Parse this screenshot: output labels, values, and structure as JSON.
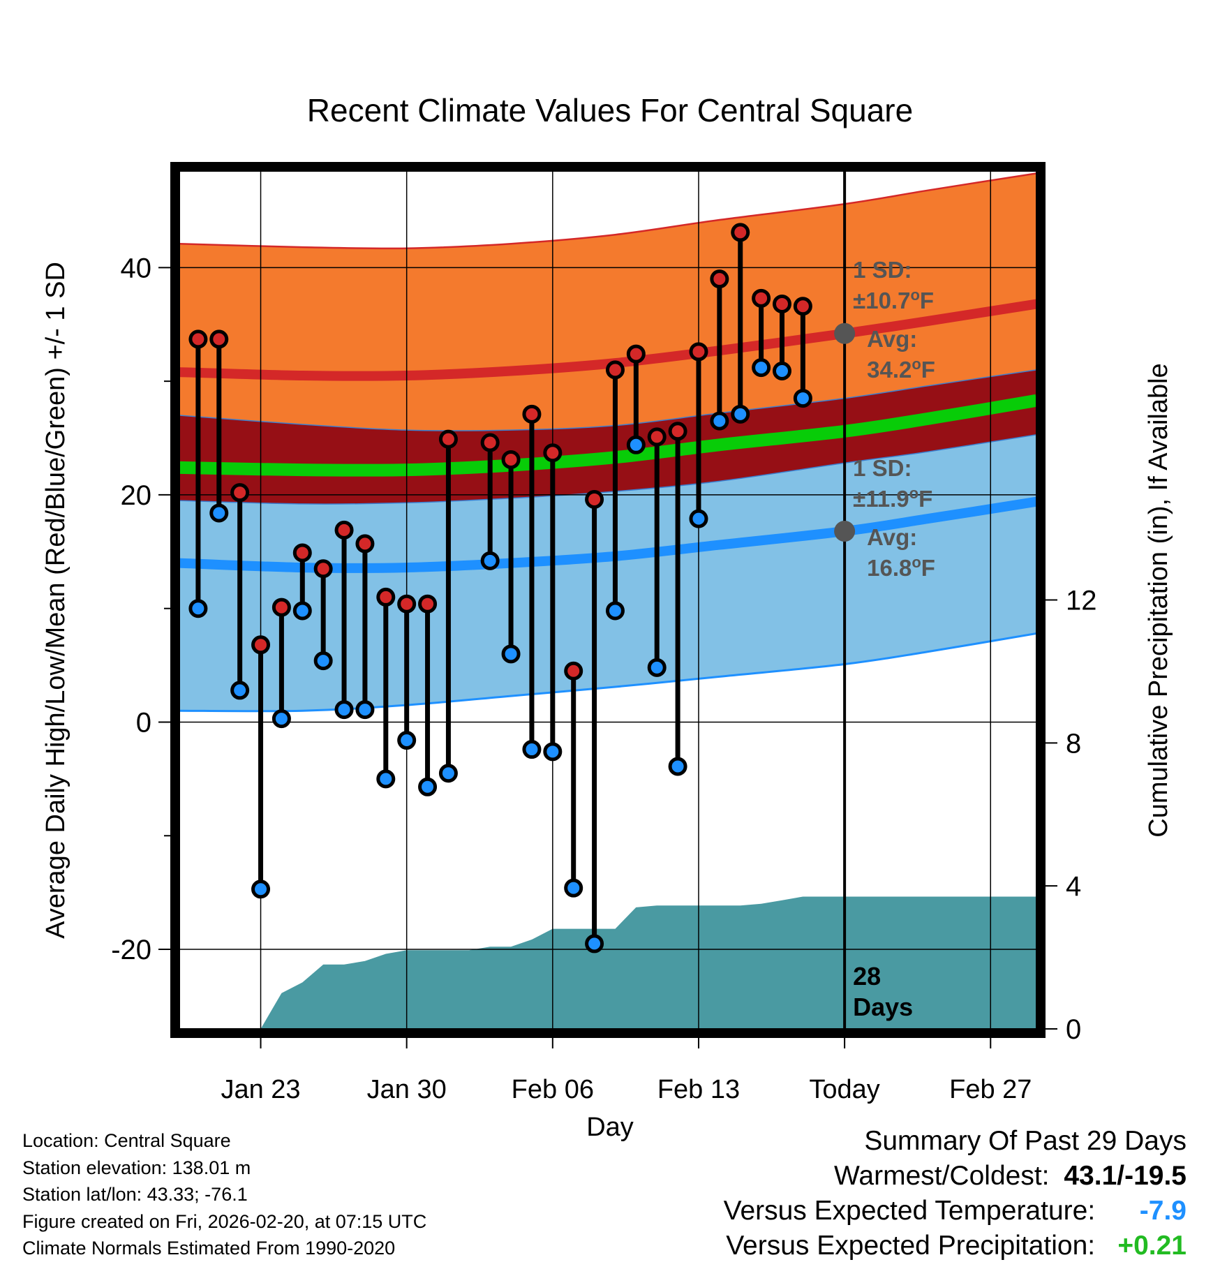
{
  "chart_data": {
    "type": "line",
    "title": "Recent Climate Values For Central Square",
    "xlabel": "Day",
    "ylabel": "Average Daily High/Low/Mean (Red/Blue/Green) +/- 1 SD",
    "y2label": "Cumulative Precipitation (in), If Available",
    "ylim": [
      -27,
      48.5
    ],
    "y2lim": [
      0,
      24
    ],
    "xlim": [
      -0.9,
      40.2
    ],
    "yticks": [
      "-20",
      "0",
      "20",
      "40"
    ],
    "y2ticks": [
      "0",
      "4",
      "8",
      "12"
    ],
    "xticks": [
      {
        "day": 3,
        "label": "Jan 23"
      },
      {
        "day": 10,
        "label": "Jan 30"
      },
      {
        "day": 17,
        "label": "Feb 06"
      },
      {
        "day": 24,
        "label": "Feb 13"
      },
      {
        "day": 31,
        "label": "Today"
      },
      {
        "day": 38,
        "label": "Feb 27"
      }
    ],
    "today_day": 31,
    "normals_x": [
      -0.9,
      5,
      10,
      15,
      20,
      25,
      31,
      35,
      40.2
    ],
    "normal_high_avg": [
      30.8,
      30.5,
      30.5,
      30.9,
      31.6,
      32.7,
      34.2,
      35.3,
      36.8
    ],
    "normal_high_upper": [
      42.1,
      41.8,
      41.7,
      42.1,
      42.9,
      44.2,
      45.6,
      46.8,
      48.3
    ],
    "normal_mean_avg": [
      22.4,
      22.2,
      22.2,
      22.6,
      23.3,
      24.4,
      25.6,
      26.7,
      28.3
    ],
    "normal_low_avg": [
      14.0,
      13.6,
      13.6,
      14.0,
      14.6,
      15.6,
      16.8,
      17.9,
      19.4
    ],
    "normal_low_lower": [
      1.0,
      1.0,
      1.5,
      2.3,
      3.1,
      4.0,
      5.1,
      6.2,
      7.8
    ],
    "daily": {
      "days": [
        0,
        1,
        2,
        3,
        4,
        5,
        6,
        7,
        8,
        9,
        10,
        11,
        12,
        14,
        15,
        16,
        17,
        18,
        19,
        20,
        21,
        22,
        23,
        24,
        25,
        26,
        27,
        28,
        29,
        30
      ],
      "high": [
        33.7,
        33.7,
        20.2,
        6.8,
        10.1,
        14.9,
        13.5,
        16.9,
        15.7,
        11.0,
        10.4,
        10.4,
        24.9,
        24.6,
        23.1,
        27.1,
        23.7,
        4.5,
        19.6,
        31.0,
        32.4,
        25.1,
        25.6,
        32.6,
        39.0,
        43.1,
        37.3,
        36.8,
        36.6,
        null
      ],
      "low": [
        10.0,
        18.4,
        2.8,
        -14.7,
        0.3,
        9.8,
        5.4,
        1.1,
        1.1,
        -5.0,
        -1.6,
        -5.7,
        -4.5,
        14.2,
        6.0,
        -2.4,
        -2.6,
        -14.6,
        -19.5,
        9.8,
        24.4,
        4.8,
        -3.9,
        17.9,
        26.5,
        27.1,
        31.2,
        30.9,
        28.5,
        null
      ]
    },
    "precip": {
      "days": [
        -0.9,
        0,
        1,
        2,
        2.9,
        3,
        4,
        5,
        6,
        7,
        8,
        9,
        10,
        11,
        12,
        13,
        14,
        15,
        16,
        17,
        18,
        19,
        20,
        21,
        22,
        23,
        24,
        25,
        26,
        27,
        28,
        29,
        30,
        31,
        32,
        35,
        38,
        40.2
      ],
      "values": [
        0,
        0,
        0,
        0,
        0,
        0,
        1.0,
        1.3,
        1.8,
        1.8,
        1.9,
        2.1,
        2.2,
        2.2,
        2.2,
        2.2,
        2.3,
        2.3,
        2.5,
        2.8,
        2.8,
        2.8,
        2.8,
        3.4,
        3.45,
        3.45,
        3.45,
        3.45,
        3.45,
        3.5,
        3.6,
        3.7,
        3.7,
        3.7,
        3.7,
        3.7,
        3.7,
        3.7
      ]
    },
    "annotations": {
      "high_sd": "1 SD:",
      "high_sd_val": "±10.7",
      "high_avg_label": "Avg:",
      "high_avg_val": "34.2",
      "low_sd": "1 SD:",
      "low_sd_val": "±11.9",
      "low_avg_label": "Avg:",
      "low_avg_val": "16.8",
      "degree_unit": "oF",
      "days_count": "28",
      "days_word": "Days"
    },
    "colors": {
      "high_band": "#f47a2d",
      "high_line": "#d42828",
      "mean_band": "#960f15",
      "mean_line": "#08cc08",
      "low_band": "#82c1e6",
      "low_line": "#1e90ff",
      "precip": "#4a9aa2",
      "annotation": "#555555",
      "high_marker": "#d42828",
      "low_marker": "#1e90ff"
    }
  },
  "info": {
    "location": "Location: Central Square",
    "elevation": "Station elevation: 138.01 m",
    "latlon": "Station lat/lon: 43.33; -76.1",
    "created": "Figure created on Fri, 2026-02-20, at 07:15 UTC",
    "normals": "Climate Normals Estimated From 1990-2020"
  },
  "summary": {
    "title": "Summary Of Past 29 Days",
    "warmest_label": "Warmest/Coldest:",
    "warmest_value": "43.1/-19.5",
    "temp_label": "Versus Expected Temperature:",
    "temp_value": "-7.9",
    "temp_color": "#1e90ff",
    "precip_label": "Versus Expected Precipitation:",
    "precip_value": "+0.21",
    "precip_color": "#22bb22"
  }
}
